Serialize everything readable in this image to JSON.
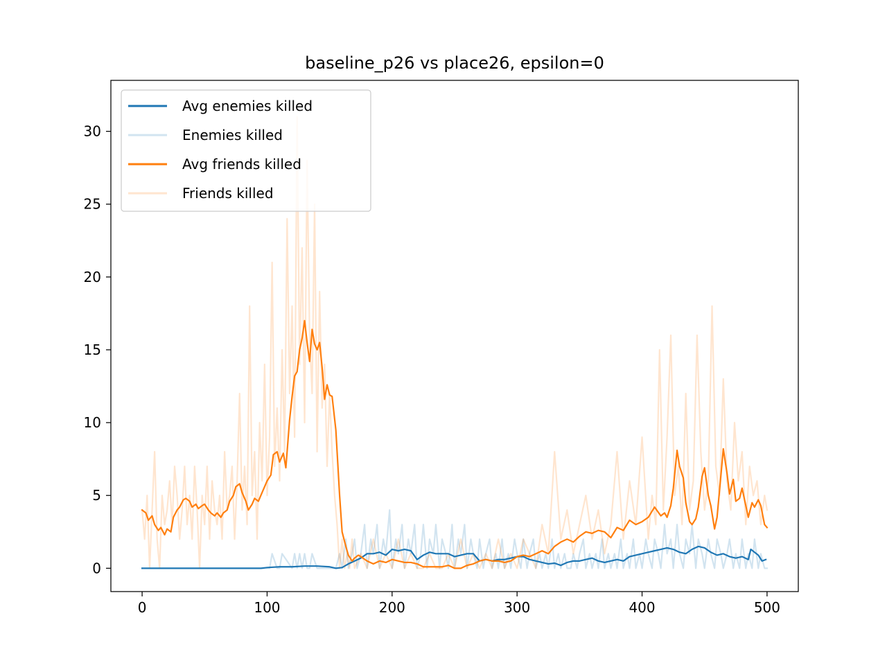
{
  "chart_data": {
    "type": "line",
    "title": "baseline_p26 vs place26, epsilon=0",
    "xlabel": "",
    "ylabel": "",
    "xlim": [
      -25,
      525
    ],
    "ylim": [
      -1.6,
      33.5
    ],
    "xticks": [
      0,
      100,
      200,
      300,
      400,
      500
    ],
    "yticks": [
      0,
      5,
      10,
      15,
      20,
      25,
      30
    ],
    "xtick_labels": [
      "0",
      "100",
      "200",
      "300",
      "400",
      "500"
    ],
    "ytick_labels": [
      "0",
      "5",
      "10",
      "15",
      "20",
      "25",
      "30"
    ],
    "grid": false,
    "legend_position": "upper-left",
    "series": [
      {
        "name": "Avg enemies killed",
        "color": "#1f77b4",
        "alpha": 1,
        "width": 2.2,
        "x": [
          0,
          20,
          40,
          60,
          80,
          95,
          100,
          110,
          120,
          130,
          140,
          150,
          155,
          160,
          165,
          170,
          175,
          180,
          185,
          190,
          195,
          200,
          205,
          210,
          215,
          220,
          225,
          230,
          235,
          240,
          245,
          250,
          255,
          260,
          265,
          270,
          275,
          280,
          285,
          290,
          295,
          300,
          305,
          310,
          315,
          320,
          325,
          330,
          335,
          340,
          345,
          350,
          355,
          360,
          365,
          370,
          375,
          380,
          385,
          390,
          395,
          400,
          405,
          410,
          415,
          420,
          425,
          430,
          435,
          440,
          445,
          450,
          455,
          460,
          465,
          470,
          475,
          480,
          485,
          487,
          490,
          493,
          496,
          499
        ],
        "y": [
          0,
          0,
          0,
          0,
          0,
          0,
          0.05,
          0.1,
          0.1,
          0.15,
          0.15,
          0.1,
          0,
          0.05,
          0.3,
          0.5,
          0.7,
          1.0,
          1.0,
          1.1,
          0.9,
          1.3,
          1.2,
          1.3,
          1.2,
          0.6,
          0.9,
          1.1,
          1.0,
          1.0,
          1.0,
          0.8,
          0.9,
          1.0,
          1.0,
          0.5,
          0.6,
          0.5,
          0.6,
          0.6,
          0.7,
          0.8,
          0.8,
          0.6,
          0.5,
          0.4,
          0.3,
          0.35,
          0.2,
          0.4,
          0.5,
          0.5,
          0.6,
          0.7,
          0.5,
          0.4,
          0.5,
          0.6,
          0.5,
          0.8,
          0.9,
          1.0,
          1.1,
          1.2,
          1.3,
          1.4,
          1.3,
          1.1,
          1.0,
          1.3,
          1.5,
          1.4,
          1.1,
          0.9,
          1.0,
          0.8,
          0.7,
          0.8,
          0.6,
          1.3,
          1.1,
          0.9,
          0.5,
          0.6
        ]
      },
      {
        "name": "Enemies killed",
        "color": "#1f77b4",
        "alpha": 0.2,
        "width": 2.2,
        "x": [
          0,
          100,
          102,
          104,
          108,
          110,
          112,
          120,
          122,
          124,
          126,
          128,
          130,
          132,
          134,
          136,
          140,
          155,
          158,
          160,
          163,
          165,
          168,
          170,
          172,
          175,
          178,
          180,
          183,
          185,
          188,
          190,
          193,
          195,
          198,
          200,
          203,
          205,
          208,
          210,
          213,
          215,
          218,
          220,
          223,
          225,
          228,
          230,
          233,
          235,
          238,
          240,
          243,
          245,
          248,
          250,
          253,
          255,
          258,
          260,
          263,
          265,
          268,
          270,
          273,
          275,
          278,
          280,
          283,
          285,
          288,
          290,
          293,
          295,
          298,
          300,
          303,
          305,
          308,
          310,
          313,
          315,
          318,
          320,
          323,
          325,
          328,
          330,
          333,
          335,
          338,
          340,
          343,
          345,
          348,
          350,
          353,
          355,
          358,
          360,
          363,
          365,
          368,
          370,
          373,
          375,
          378,
          380,
          383,
          385,
          388,
          390,
          393,
          395,
          398,
          400,
          403,
          405,
          408,
          410,
          413,
          415,
          418,
          420,
          423,
          425,
          428,
          430,
          433,
          435,
          438,
          440,
          443,
          445,
          448,
          450,
          453,
          455,
          458,
          460,
          463,
          465,
          468,
          470,
          473,
          475,
          478,
          480,
          483,
          485,
          488,
          490,
          493,
          495,
          498,
          500
        ],
        "y": [
          0,
          0,
          0,
          1,
          0,
          0,
          1,
          0,
          1,
          0,
          1,
          0,
          1,
          0,
          0,
          1,
          0,
          0,
          1,
          0,
          2,
          0,
          1,
          2,
          0,
          1,
          3,
          0,
          2,
          1,
          3,
          0,
          2,
          1,
          4,
          0,
          2,
          1,
          3,
          0,
          2,
          1,
          3,
          0,
          1,
          3,
          0,
          2,
          1,
          3,
          0,
          2,
          1,
          0,
          3,
          0,
          2,
          1,
          3,
          0,
          2,
          1,
          0,
          2,
          0,
          1,
          2,
          0,
          1,
          0,
          2,
          0,
          1,
          0,
          2,
          1,
          0,
          2,
          0,
          1,
          2,
          0,
          1,
          0,
          1,
          0,
          2,
          0,
          1,
          0,
          1,
          0,
          0,
          1,
          0,
          1,
          2,
          0,
          1,
          0,
          1,
          0,
          2,
          0,
          1,
          0,
          1,
          0,
          2,
          0,
          1,
          0,
          2,
          0,
          1,
          0,
          2,
          1,
          0,
          2,
          1,
          0,
          3,
          1,
          2,
          0,
          3,
          1,
          0,
          2,
          1,
          3,
          0,
          2,
          1,
          0,
          2,
          1,
          0,
          2,
          1,
          0,
          1,
          2,
          0,
          1,
          0,
          2,
          0,
          1,
          0,
          2,
          0,
          1,
          0,
          0
        ]
      },
      {
        "name": "Avg friends killed",
        "color": "#ff7f0e",
        "alpha": 1,
        "width": 2.2,
        "x": [
          0,
          3,
          5,
          8,
          10,
          13,
          15,
          18,
          20,
          23,
          25,
          28,
          30,
          33,
          35,
          38,
          40,
          43,
          45,
          48,
          50,
          53,
          55,
          58,
          60,
          63,
          65,
          68,
          70,
          73,
          75,
          78,
          80,
          83,
          85,
          88,
          90,
          93,
          95,
          98,
          100,
          103,
          105,
          108,
          110,
          113,
          115,
          118,
          120,
          122,
          124,
          126,
          128,
          130,
          132,
          134,
          136,
          138,
          140,
          142,
          144,
          146,
          148,
          150,
          152,
          155,
          158,
          160,
          163,
          165,
          168,
          170,
          173,
          175,
          180,
          185,
          190,
          195,
          200,
          205,
          210,
          215,
          220,
          225,
          230,
          235,
          240,
          245,
          250,
          255,
          260,
          265,
          270,
          275,
          280,
          285,
          290,
          295,
          300,
          305,
          310,
          315,
          320,
          325,
          330,
          335,
          340,
          345,
          350,
          355,
          360,
          365,
          370,
          375,
          380,
          385,
          390,
          395,
          400,
          405,
          410,
          415,
          418,
          420,
          423,
          425,
          428,
          430,
          433,
          435,
          438,
          440,
          443,
          445,
          448,
          450,
          453,
          455,
          458,
          460,
          463,
          465,
          468,
          470,
          473,
          475,
          478,
          480,
          483,
          485,
          488,
          490,
          493,
          495,
          498,
          500
        ],
        "y": [
          4.0,
          3.8,
          3.3,
          3.6,
          3.0,
          2.6,
          2.8,
          2.3,
          2.7,
          2.5,
          3.5,
          4.0,
          4.2,
          4.7,
          4.8,
          4.6,
          4.2,
          4.4,
          4.1,
          4.3,
          4.4,
          4.0,
          3.8,
          3.6,
          3.8,
          3.5,
          3.8,
          4.0,
          4.6,
          5.0,
          5.6,
          5.8,
          5.2,
          4.6,
          4.0,
          4.4,
          4.8,
          4.6,
          5.0,
          5.6,
          6.0,
          6.4,
          7.8,
          8.0,
          7.3,
          7.9,
          6.9,
          10.2,
          11.8,
          13.2,
          13.5,
          15.0,
          15.8,
          17.0,
          15.5,
          14.2,
          16.4,
          15.4,
          15.0,
          15.5,
          13.8,
          11.6,
          12.6,
          11.9,
          11.8,
          9.5,
          5.0,
          2.5,
          1.5,
          0.9,
          0.5,
          0.7,
          0.9,
          0.8,
          0.5,
          0.3,
          0.5,
          0.4,
          0.6,
          0.5,
          0.4,
          0.4,
          0.3,
          0.1,
          0.1,
          0.1,
          0.1,
          0.2,
          0.0,
          0.0,
          0.2,
          0.3,
          0.5,
          0.6,
          0.5,
          0.5,
          0.4,
          0.5,
          0.8,
          0.9,
          0.8,
          1.0,
          1.2,
          1.0,
          1.5,
          1.8,
          2.0,
          1.8,
          2.2,
          2.5,
          2.4,
          2.6,
          2.5,
          2.1,
          2.8,
          2.6,
          3.3,
          3.0,
          3.2,
          3.5,
          4.2,
          3.6,
          3.8,
          3.5,
          4.3,
          5.5,
          8.1,
          7.0,
          6.2,
          4.5,
          3.2,
          3.0,
          3.4,
          4.2,
          6.3,
          6.9,
          5.0,
          4.3,
          2.7,
          3.5,
          6.3,
          8.2,
          6.5,
          5.1,
          6.1,
          4.6,
          4.8,
          5.5,
          4.3,
          3.5,
          4.5,
          4.2,
          4.7,
          4.3,
          3.0,
          2.8
        ]
      },
      {
        "name": "Friends killed",
        "color": "#ff7f0e",
        "alpha": 0.2,
        "width": 2.2,
        "x": [
          0,
          2,
          4,
          6,
          8,
          10,
          12,
          14,
          16,
          18,
          20,
          22,
          24,
          26,
          28,
          30,
          32,
          34,
          36,
          38,
          40,
          42,
          44,
          46,
          48,
          50,
          52,
          54,
          56,
          58,
          60,
          62,
          64,
          66,
          68,
          70,
          72,
          74,
          76,
          78,
          80,
          82,
          84,
          86,
          88,
          90,
          92,
          94,
          96,
          98,
          100,
          102,
          104,
          106,
          108,
          110,
          112,
          114,
          116,
          118,
          120,
          122,
          124,
          126,
          128,
          130,
          132,
          134,
          136,
          138,
          140,
          142,
          144,
          146,
          148,
          150,
          152,
          154,
          156,
          158,
          160,
          162,
          164,
          166,
          168,
          170,
          175,
          180,
          185,
          190,
          195,
          200,
          205,
          210,
          215,
          220,
          225,
          230,
          235,
          240,
          245,
          250,
          255,
          260,
          265,
          270,
          275,
          280,
          285,
          290,
          295,
          300,
          305,
          310,
          315,
          320,
          325,
          330,
          335,
          340,
          345,
          350,
          355,
          360,
          365,
          370,
          375,
          380,
          385,
          390,
          395,
          400,
          405,
          408,
          411,
          414,
          417,
          420,
          423,
          426,
          429,
          432,
          435,
          438,
          441,
          444,
          447,
          450,
          453,
          456,
          459,
          462,
          465,
          468,
          471,
          474,
          477,
          480,
          483,
          486,
          489,
          492,
          495,
          498,
          500
        ],
        "y": [
          4,
          2,
          5,
          0,
          4,
          8,
          2,
          0,
          5,
          3,
          4,
          6,
          3,
          7,
          5,
          2,
          4,
          7,
          3,
          5,
          2,
          7,
          4,
          0,
          5,
          3,
          7,
          2,
          6,
          4,
          3,
          5,
          2,
          8,
          4,
          5,
          7,
          2,
          6,
          12,
          4,
          7,
          3,
          18,
          5,
          8,
          2,
          10,
          6,
          14,
          5,
          9,
          21,
          7,
          11,
          6,
          15,
          8,
          24,
          12,
          18,
          9,
          31,
          14,
          22,
          10,
          28,
          16,
          12,
          25,
          8,
          19,
          11,
          14,
          7,
          12,
          8,
          5,
          3,
          0,
          2,
          0,
          1,
          0,
          2,
          0,
          1,
          0,
          2,
          0,
          1,
          0,
          2,
          0,
          1,
          0,
          0,
          1,
          0,
          0,
          1,
          0,
          2,
          0,
          1,
          0,
          1,
          0,
          2,
          0,
          1,
          0,
          2,
          1,
          0,
          3,
          1,
          8,
          2,
          4,
          1,
          3,
          5,
          2,
          4,
          1,
          3,
          8,
          2,
          6,
          3,
          9,
          2,
          5,
          3,
          15,
          4,
          9,
          16,
          5,
          7,
          3,
          12,
          4,
          6,
          16,
          8,
          4,
          6,
          18,
          7,
          5,
          13,
          6,
          4,
          10,
          6,
          8,
          3,
          7,
          5,
          6,
          3,
          5,
          4
        ]
      }
    ]
  }
}
